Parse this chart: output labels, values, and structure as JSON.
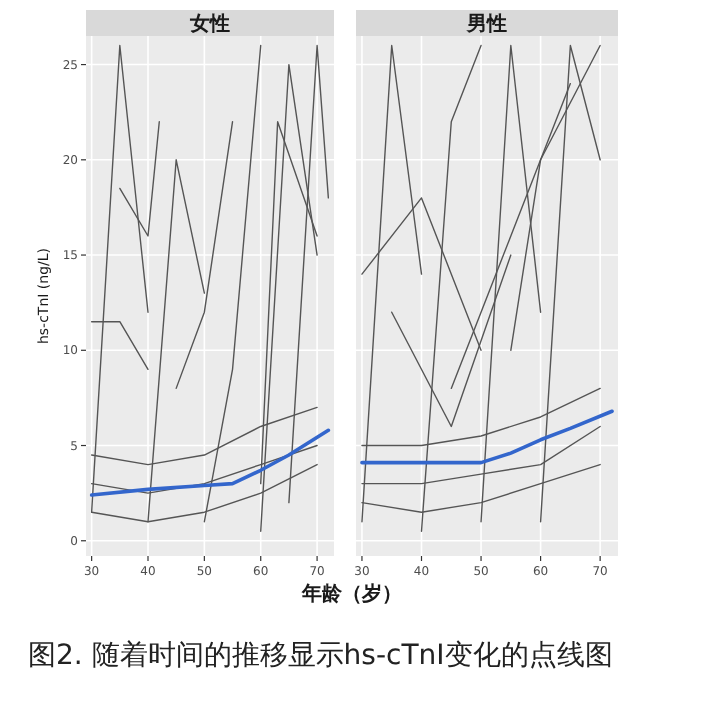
{
  "chart_data": [
    {
      "type": "line",
      "title": "女性",
      "xlabel": "年龄（岁）",
      "ylabel": "hs-cTnI (ng/L)",
      "annotations": [
        "图2. 随着时间的推移显示hs-cTnI变化的点线图"
      ],
      "xlim": [
        29,
        73
      ],
      "ylim": [
        -0.8,
        26.5
      ],
      "xticks": [
        30,
        40,
        50,
        60,
        70
      ],
      "yticks": [
        0,
        5,
        10,
        15,
        20,
        25
      ],
      "grid": true,
      "series": [
        {
          "color": "#555555",
          "x": [
            30,
            35,
            40
          ],
          "values": [
            1.5,
            26,
            12
          ]
        },
        {
          "color": "#555555",
          "x": [
            35,
            40,
            42
          ],
          "values": [
            18.5,
            16,
            22
          ]
        },
        {
          "color": "#555555",
          "x": [
            40,
            45,
            50
          ],
          "values": [
            1,
            20,
            13
          ]
        },
        {
          "color": "#555555",
          "x": [
            45,
            50,
            55
          ],
          "values": [
            8,
            12,
            22
          ]
        },
        {
          "color": "#555555",
          "x": [
            50,
            55,
            60
          ],
          "values": [
            1,
            9,
            26
          ]
        },
        {
          "color": "#555555",
          "x": [
            60,
            65,
            70
          ],
          "values": [
            0.5,
            25,
            15
          ]
        },
        {
          "color": "#555555",
          "x": [
            60,
            63,
            70
          ],
          "values": [
            3,
            22,
            16
          ]
        },
        {
          "color": "#555555",
          "x": [
            30,
            40,
            50,
            60,
            70
          ],
          "values": [
            3,
            2.5,
            3,
            4,
            5
          ]
        },
        {
          "color": "#555555",
          "x": [
            30,
            40,
            50,
            60,
            70
          ],
          "values": [
            1.5,
            1,
            1.5,
            2.5,
            4
          ]
        },
        {
          "color": "#555555",
          "x": [
            30,
            40,
            50,
            60,
            70
          ],
          "values": [
            4.5,
            4,
            4.5,
            6,
            7
          ]
        },
        {
          "color": "#555555",
          "x": [
            65,
            70,
            72
          ],
          "values": [
            2,
            26,
            18
          ]
        },
        {
          "color": "#555555",
          "x": [
            30,
            35,
            40
          ],
          "values": [
            11.5,
            11.5,
            9
          ]
        },
        {
          "color": "#3366cc",
          "x": [
            30,
            40,
            50,
            55,
            60,
            65,
            72
          ],
          "values": [
            2.4,
            2.7,
            2.9,
            3.0,
            3.7,
            4.5,
            5.8
          ]
        }
      ]
    },
    {
      "type": "line",
      "title": "男性",
      "xlim": [
        29,
        73
      ],
      "ylim": [
        -0.8,
        26.5
      ],
      "xticks": [
        30,
        40,
        50,
        60,
        70
      ],
      "yticks": [
        0,
        5,
        10,
        15,
        20,
        25
      ],
      "grid": true,
      "tick_labels": "x",
      "series": [
        {
          "color": "#555555",
          "x": [
            30,
            35,
            40
          ],
          "values": [
            1,
            26,
            14
          ]
        },
        {
          "color": "#555555",
          "x": [
            40,
            45,
            50
          ],
          "values": [
            0.5,
            22,
            26
          ]
        },
        {
          "color": "#555555",
          "x": [
            50,
            55,
            60
          ],
          "values": [
            1,
            26,
            12
          ]
        },
        {
          "color": "#555555",
          "x": [
            60,
            65,
            70
          ],
          "values": [
            1,
            26,
            20
          ]
        },
        {
          "color": "#555555",
          "x": [
            30,
            40,
            50
          ],
          "values": [
            14,
            18,
            10
          ]
        },
        {
          "color": "#555555",
          "x": [
            45,
            55,
            65
          ],
          "values": [
            8,
            16,
            24
          ]
        },
        {
          "color": "#555555",
          "x": [
            55,
            60,
            70
          ],
          "values": [
            10,
            20,
            26
          ]
        },
        {
          "color": "#555555",
          "x": [
            30,
            40,
            50,
            60,
            70
          ],
          "values": [
            2,
            1.5,
            2,
            3,
            4
          ]
        },
        {
          "color": "#555555",
          "x": [
            30,
            40,
            50,
            60,
            70
          ],
          "values": [
            3,
            3,
            3.5,
            4,
            6
          ]
        },
        {
          "color": "#555555",
          "x": [
            30,
            40,
            50,
            60,
            70
          ],
          "values": [
            5,
            5,
            5.5,
            6.5,
            8
          ]
        },
        {
          "color": "#555555",
          "x": [
            35,
            45,
            55
          ],
          "values": [
            12,
            6,
            15
          ]
        },
        {
          "color": "#3366cc",
          "x": [
            30,
            40,
            50,
            55,
            60,
            65,
            72
          ],
          "values": [
            4.1,
            4.1,
            4.1,
            4.6,
            5.3,
            5.9,
            6.8
          ]
        }
      ]
    }
  ]
}
